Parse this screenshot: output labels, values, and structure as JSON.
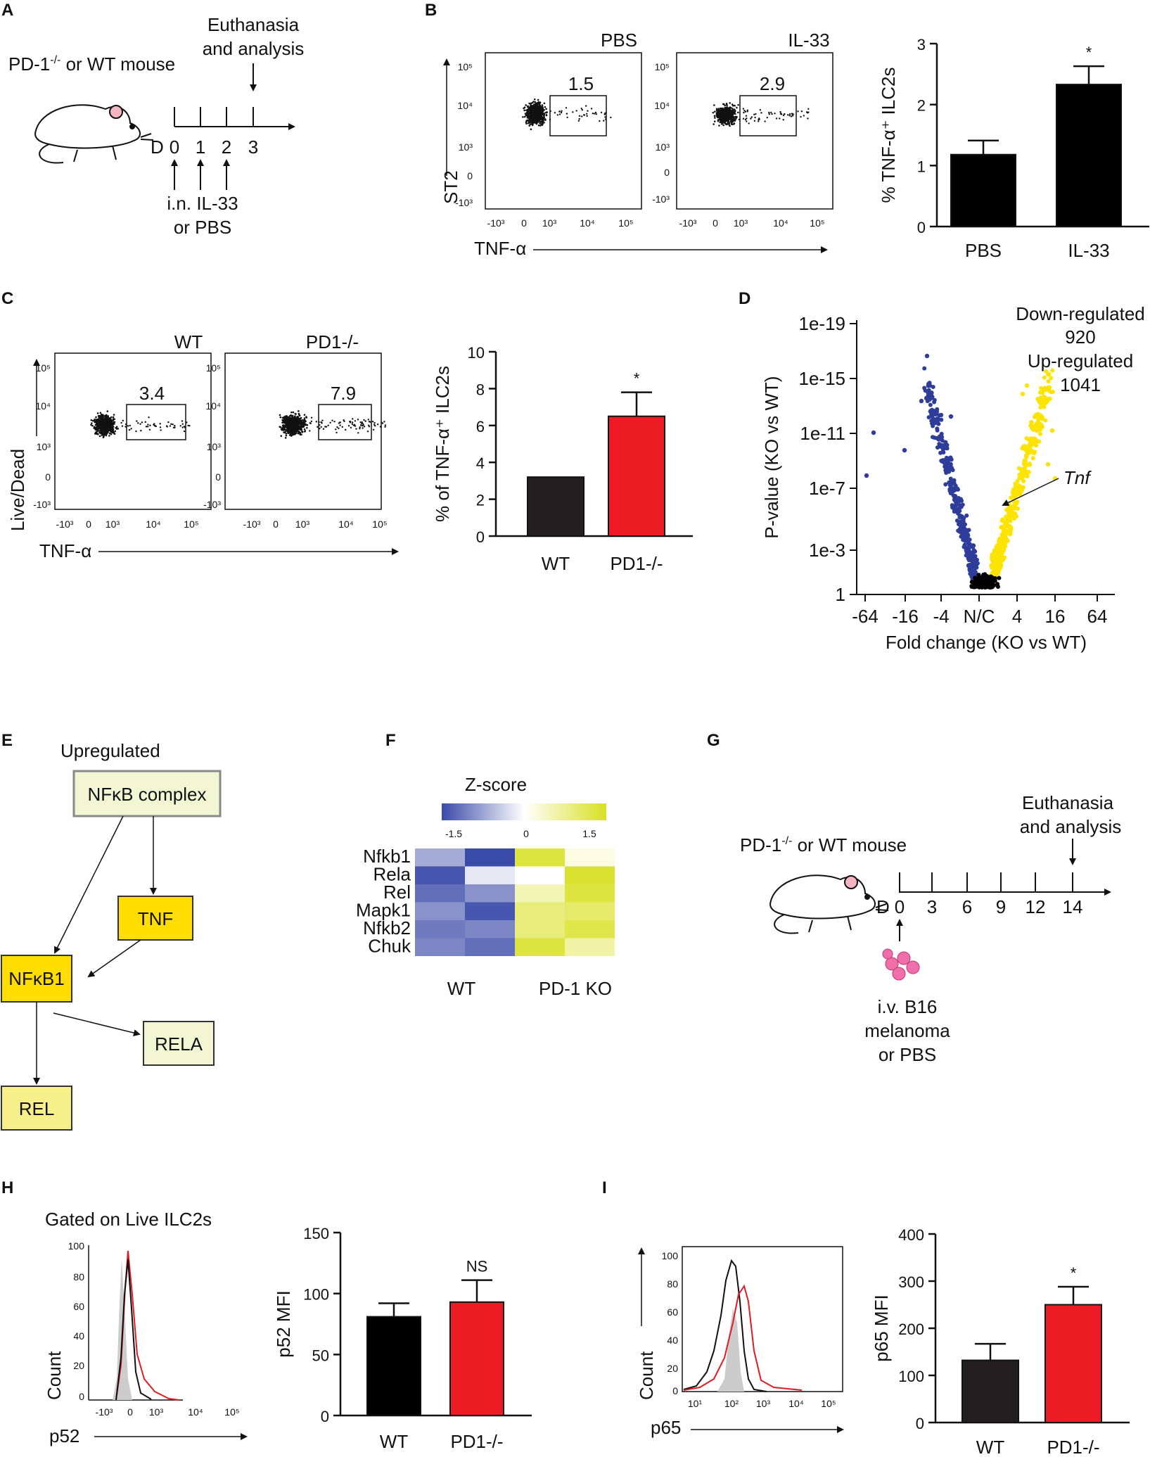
{
  "panels": {
    "A": {
      "letter": "A",
      "mouse_label": "PD-1",
      "mouse_label_sup": "-/-",
      "mouse_label_tail": " or WT mouse",
      "top_line1": "Euthanasia",
      "top_line2": "and analysis",
      "day_prefix": "D",
      "days": [
        "0",
        "1",
        "2",
        "3"
      ],
      "bottom_line1": "i.n. IL-33",
      "bottom_line2": "or PBS"
    },
    "B": {
      "letter": "B",
      "flow_titles": [
        "PBS",
        "IL-33"
      ],
      "gate_values": [
        "1.5",
        "2.9"
      ],
      "y_axis": "ST2",
      "x_axis": "TNF-α",
      "y_ticks": [
        "10⁵",
        "10⁴",
        "10³",
        "0",
        "-10³"
      ],
      "x_ticks": [
        "-10³",
        "0",
        "10³",
        "10⁴",
        "10⁵"
      ]
    },
    "C": {
      "letter": "C",
      "flow_titles": [
        "WT",
        "PD1-/-"
      ],
      "gate_values": [
        "3.4",
        "7.9"
      ],
      "y_axis": "Live/Dead",
      "x_axis": "TNF-α"
    },
    "D": {
      "letter": "D",
      "down_label": "Down-regulated",
      "down_count": "920",
      "up_label": "Up-regulated",
      "up_count": "1041",
      "gene_label": "Tnf"
    },
    "E": {
      "letter": "E",
      "heading": "Upregulated",
      "nodes": [
        "NFκB complex",
        "TNF",
        "NFκB1",
        "RELA",
        "REL"
      ]
    },
    "F": {
      "letter": "F",
      "colorbar_title": "Z-score",
      "colorbar_ticks": [
        "-1.5",
        "0",
        "1.5"
      ],
      "group_labels": [
        "WT",
        "PD-1 KO"
      ]
    },
    "G": {
      "letter": "G",
      "mouse_label": "PD-1",
      "mouse_label_sup": "-/-",
      "mouse_label_tail": " or WT mouse",
      "top_line1": "Euthanasia",
      "top_line2": "and analysis",
      "day_prefix": "D",
      "days": [
        "0",
        "3",
        "6",
        "9",
        "12",
        "14"
      ],
      "bottom_line1": "i.v. B16",
      "bottom_line2": "melanoma",
      "bottom_line3": "or PBS"
    },
    "H": {
      "letter": "H",
      "gate_note": "Gated on Live ILC2s",
      "hist_y_axis": "Count",
      "hist_x_axis": "p52",
      "hist_y_ticks": [
        "100",
        "80",
        "60",
        "40",
        "20",
        "0"
      ],
      "hist_x_ticks": [
        "-10³",
        "0",
        "10³",
        "10⁴",
        "10⁵"
      ]
    },
    "I": {
      "letter": "I",
      "hist_y_axis": "Count",
      "hist_x_axis": "p65",
      "hist_y_ticks": [
        "100",
        "80",
        "60",
        "40",
        "20",
        "0"
      ],
      "hist_x_ticks": [
        "10¹",
        "10²",
        "10³",
        "10⁴",
        "10⁵"
      ]
    }
  },
  "colors": {
    "black_bar": "#000000",
    "dark_bar": "#231f20",
    "red_bar": "#ed1c24",
    "yellow_dots": "#fde400",
    "blue_dots": "#2e3d9a",
    "node_yellow": "#ffdd00",
    "node_pale": "#f3f6d2",
    "node_pale_yellow": "#f6ef8a"
  },
  "chart_data": [
    {
      "id": "B-bar",
      "type": "bar",
      "categories": [
        "PBS",
        "IL-33"
      ],
      "values": [
        1.18,
        2.33
      ],
      "errors": [
        0.23,
        0.3
      ],
      "ylabel": "% TNF-α⁺ ILC2s",
      "ylim": [
        0,
        3
      ],
      "yticks": [
        0,
        1,
        2,
        3
      ],
      "significance": [
        "",
        "*"
      ],
      "bar_colors": [
        "#000000",
        "#000000"
      ]
    },
    {
      "id": "C-bar",
      "type": "bar",
      "categories": [
        "WT",
        "PD1-/-"
      ],
      "values": [
        3.2,
        6.5
      ],
      "errors": [
        0,
        1.3
      ],
      "ylabel": "% of TNF-α⁺ ILC2s",
      "ylim": [
        0,
        10
      ],
      "yticks": [
        0,
        2,
        4,
        6,
        8,
        10
      ],
      "significance": [
        "",
        "*"
      ],
      "bar_colors": [
        "#231f20",
        "#ed1c24"
      ]
    },
    {
      "id": "D-volcano",
      "type": "scatter",
      "xlabel": "Fold change (KO vs WT)",
      "ylabel": "P-value (KO vs WT)",
      "x_ticks": [
        "-64",
        "-16",
        "-4",
        "N/C",
        "4",
        "16",
        "64"
      ],
      "y_ticks": [
        "1e-19",
        "1e-15",
        "1e-11",
        "1e-7",
        "1e-3",
        "1"
      ],
      "series": [
        {
          "name": "Down-regulated",
          "count": 920,
          "color": "#2e3d9a"
        },
        {
          "name": "Up-regulated",
          "count": 1041,
          "color": "#fde400"
        },
        {
          "name": "Not significant",
          "color": "#000000"
        }
      ]
    },
    {
      "id": "F-heatmap",
      "type": "heatmap",
      "rows": [
        "Nfkb1",
        "Rela",
        "Rel",
        "Mapk1",
        "Nfkb2",
        "Chuk"
      ],
      "columns": [
        "WT-1",
        "WT-2",
        "PD-1 KO-1",
        "PD-1 KO-2"
      ],
      "zscores": [
        [
          -0.7,
          -1.5,
          1.3,
          0.2
        ],
        [
          -1.4,
          -0.2,
          0.0,
          1.4
        ],
        [
          -1.2,
          -0.9,
          0.5,
          1.3
        ],
        [
          -0.9,
          -1.4,
          0.9,
          1.0
        ],
        [
          -1.1,
          -1.0,
          0.9,
          1.2
        ],
        [
          -1.0,
          -1.2,
          1.3,
          0.6
        ]
      ],
      "range": [
        -1.5,
        1.5
      ]
    },
    {
      "id": "H-bar",
      "type": "bar",
      "categories": [
        "WT",
        "PD1-/-"
      ],
      "values": [
        81,
        93
      ],
      "errors": [
        11,
        18
      ],
      "ylabel": "p52 MFI",
      "ylim": [
        0,
        150
      ],
      "yticks": [
        0,
        50,
        100,
        150
      ],
      "significance": [
        "",
        "NS"
      ],
      "bar_colors": [
        "#000000",
        "#ed1c24"
      ]
    },
    {
      "id": "I-bar",
      "type": "bar",
      "categories": [
        "WT",
        "PD1-/-"
      ],
      "values": [
        132,
        250
      ],
      "errors": [
        35,
        38
      ],
      "ylabel": "p65 MFI",
      "ylim": [
        0,
        400
      ],
      "yticks": [
        0,
        100,
        200,
        300,
        400
      ],
      "significance": [
        "",
        "*"
      ],
      "bar_colors": [
        "#231f20",
        "#ed1c24"
      ]
    }
  ]
}
